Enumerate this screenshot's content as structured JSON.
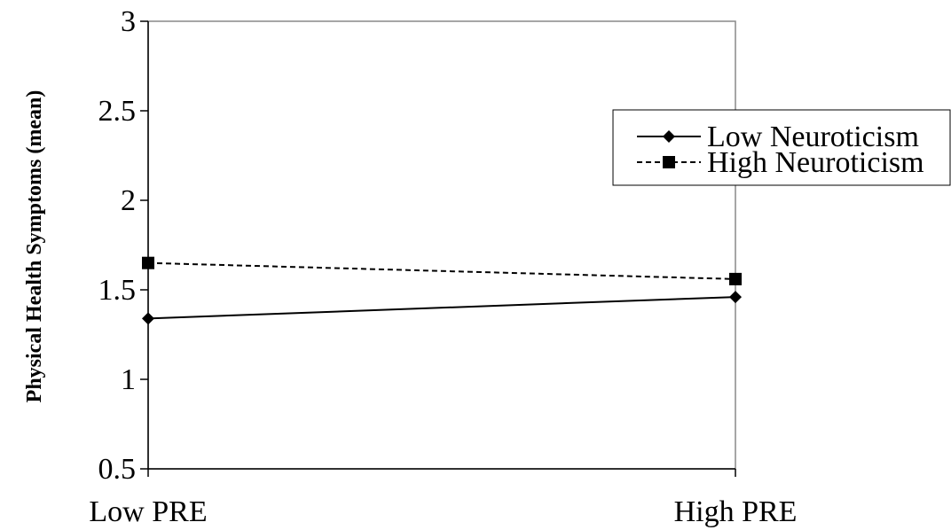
{
  "chart_data": {
    "type": "line",
    "categories": [
      "Low PRE",
      "High PRE"
    ],
    "series": [
      {
        "name": "Low Neuroticism",
        "values": [
          1.34,
          1.46
        ],
        "marker": "diamond",
        "line_style": "solid",
        "color": "#000000"
      },
      {
        "name": "High Neuroticism",
        "values": [
          1.65,
          1.56
        ],
        "marker": "square",
        "line_style": "dashed",
        "color": "#000000"
      }
    ],
    "title": "",
    "xlabel": "",
    "ylabel": "Physical Health Symptoms (mean)",
    "ylim": [
      0.5,
      3
    ],
    "yticks": [
      {
        "value": 0.5,
        "label": "0.5"
      },
      {
        "value": 1,
        "label": "1"
      },
      {
        "value": 1.5,
        "label": "1.5"
      },
      {
        "value": 2,
        "label": "2"
      },
      {
        "value": 2.5,
        "label": "2.5"
      },
      {
        "value": 3,
        "label": "3"
      }
    ],
    "grid": false,
    "legend_position": "top-right"
  }
}
